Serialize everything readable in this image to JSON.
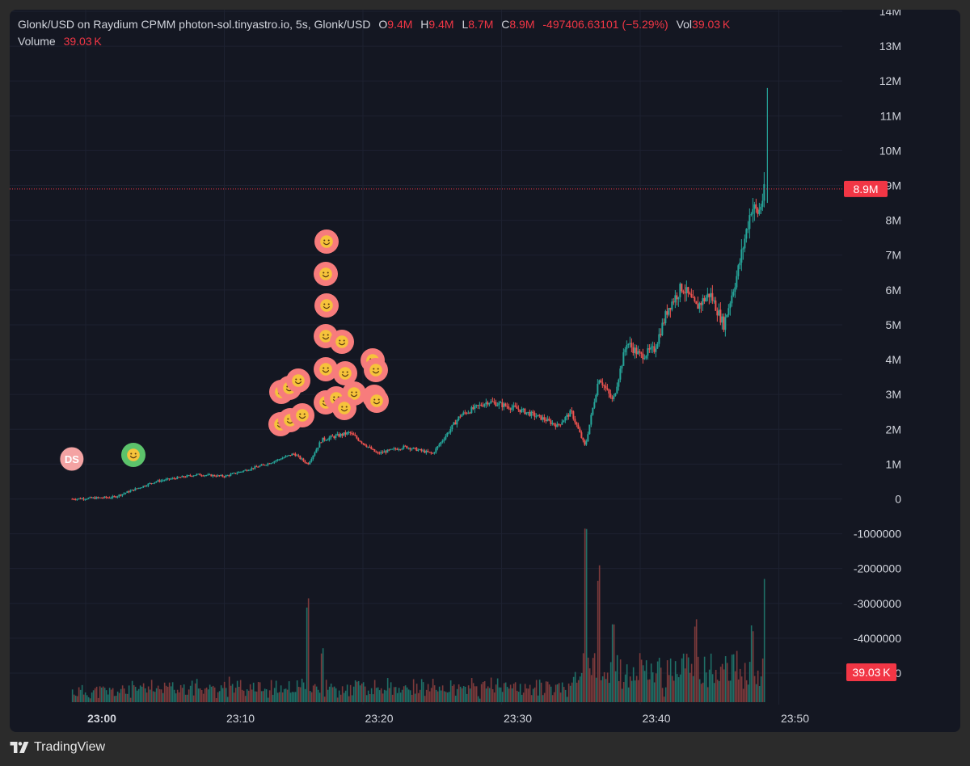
{
  "legend": {
    "title": "Glonk/USD on Raydium CPMM photon-sol.tinyastro.io, 5s, Glonk/USD",
    "o_label": "O",
    "o_value": "9.4M",
    "h_label": "H",
    "h_value": "9.4M",
    "l_label": "L",
    "l_value": "8.7M",
    "c_label": "C",
    "c_value": "8.9M",
    "change": "-497406.63101 (−5.29%)",
    "vol_label": "Vol",
    "vol_value": "39.03 K"
  },
  "volume_legend": {
    "label": "Volume",
    "value": "39.03 K"
  },
  "price_badge": "8.9M",
  "volume_badge": "39.03 K",
  "brand": "TradingView",
  "colors": {
    "background": "#141722",
    "up": "#26a69a",
    "down": "#ef5350",
    "badge": "#f23645",
    "text": "#d1d4dc",
    "marker_red": "#f77c7c",
    "marker_green": "#5cc36b",
    "marker_ds": "#f4a3a3"
  },
  "chart_data": {
    "type": "candlestick",
    "symbol": "Glonk/USD",
    "interval": "5s",
    "x_ticks": [
      "23:00",
      "23:10",
      "23:20",
      "23:30",
      "23:40",
      "23:50"
    ],
    "y_ticks": [
      "14M",
      "13M",
      "12M",
      "11M",
      "10M",
      "9M",
      "8M",
      "7M",
      "6M",
      "5M",
      "4M",
      "3M",
      "2M",
      "1M",
      "0",
      "-1000000",
      "-2000000",
      "-3000000",
      "-4000000",
      "-5000000"
    ],
    "ylim": [
      -5000000,
      14000000
    ],
    "last_price": 8900000,
    "price_path": [
      {
        "t": "22:59",
        "price": 0
      },
      {
        "t": "23:02",
        "price": 50000
      },
      {
        "t": "23:05",
        "price": 500000
      },
      {
        "t": "23:08",
        "price": 700000
      },
      {
        "t": "23:10",
        "price": 650000
      },
      {
        "t": "23:13",
        "price": 1000000
      },
      {
        "t": "23:15",
        "price": 1300000
      },
      {
        "t": "23:16",
        "price": 1000000
      },
      {
        "t": "23:17",
        "price": 1700000
      },
      {
        "t": "23:19",
        "price": 1900000
      },
      {
        "t": "23:21",
        "price": 1300000
      },
      {
        "t": "23:23",
        "price": 1500000
      },
      {
        "t": "23:25",
        "price": 1300000
      },
      {
        "t": "23:27",
        "price": 2400000
      },
      {
        "t": "23:29",
        "price": 2800000
      },
      {
        "t": "23:31",
        "price": 2600000
      },
      {
        "t": "23:33",
        "price": 2300000
      },
      {
        "t": "23:34",
        "price": 2100000
      },
      {
        "t": "23:35",
        "price": 2500000
      },
      {
        "t": "23:36",
        "price": 1500000
      },
      {
        "t": "23:37",
        "price": 3500000
      },
      {
        "t": "23:38",
        "price": 2800000
      },
      {
        "t": "23:39",
        "price": 4500000
      },
      {
        "t": "23:40",
        "price": 4100000
      },
      {
        "t": "23:41",
        "price": 4300000
      },
      {
        "t": "23:42",
        "price": 5500000
      },
      {
        "t": "23:43",
        "price": 6100000
      },
      {
        "t": "23:44",
        "price": 5500000
      },
      {
        "t": "23:45",
        "price": 5900000
      },
      {
        "t": "23:46",
        "price": 5000000
      },
      {
        "t": "23:47",
        "price": 6500000
      },
      {
        "t": "23:48",
        "price": 8400000
      },
      {
        "t": "23:48:30",
        "price": 8200000
      },
      {
        "t": "23:49",
        "price": 8900000
      }
    ],
    "volume_spikes": [
      {
        "t": "23:17",
        "volume": "high"
      },
      {
        "t": "23:36",
        "volume": "highest"
      },
      {
        "t": "23:49",
        "volume": "high"
      }
    ],
    "markers": [
      {
        "t": "22:59",
        "price": 1200000,
        "type": "DS",
        "label": "DS"
      },
      {
        "t": "23:02",
        "price": 1300000,
        "type": "smile-green"
      }
    ]
  }
}
